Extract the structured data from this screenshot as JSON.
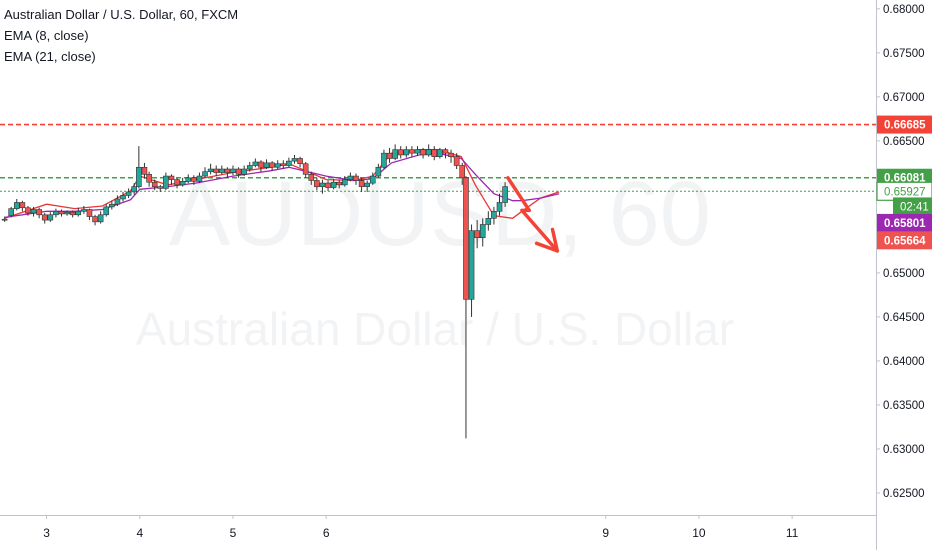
{
  "legend": {
    "title": "Australian Dollar / U.S. Dollar, 60, FXCM",
    "ema1": "EMA (8, close)",
    "ema2": "EMA (21, close)"
  },
  "watermark": {
    "symbol": "AUDUSD, 60",
    "name": "Australian Dollar / U.S. Dollar"
  },
  "colors": {
    "up": "#26a69a",
    "down": "#ef5350",
    "ema_fast": "#e53935",
    "ema_slow": "#9c27b0",
    "resistance": "#f44336",
    "support": "#43a047",
    "arrow": "#f44336",
    "axis_text": "#131722"
  },
  "chart_data": {
    "type": "candlestick",
    "symbol": "Australian Dollar / U.S. Dollar, 60, FXCM",
    "timeframe": "60",
    "y_axis": {
      "ticks": [
        "0.68000",
        "0.67500",
        "0.67000",
        "0.66500",
        "0.66000",
        "0.65500",
        "0.65000",
        "0.64500",
        "0.64000",
        "0.63500",
        "0.63000",
        "0.62500"
      ],
      "range": [
        0.6225,
        0.681
      ]
    },
    "x_axis": {
      "ticks": [
        "3",
        "4",
        "5",
        "6",
        "9",
        "10",
        "11"
      ],
      "range": [
        2.5,
        11.9
      ]
    },
    "price_labels": [
      {
        "value": "0.66685",
        "price": 0.66685,
        "color": "#f44336"
      },
      {
        "value": "0.66081",
        "price": 0.66081,
        "color": "#43a047"
      },
      {
        "value": "0.65927",
        "price": 0.65927,
        "color": "#43a047",
        "style": "outline"
      },
      {
        "value": "02:41",
        "price": 0.65755,
        "color": "#43a047",
        "style": "timer"
      },
      {
        "value": "0.65801",
        "price": 0.65568,
        "color": "#9c27b0"
      },
      {
        "value": "0.65664",
        "price": 0.6537,
        "color": "#ef5350"
      }
    ],
    "horizontal_lines": [
      {
        "price": 0.66685,
        "style": "dashed",
        "color": "#f44336"
      },
      {
        "price": 0.66081,
        "style": "dashed",
        "color": "#43a047"
      },
      {
        "price": 0.65927,
        "style": "dotted",
        "color": "#43a047"
      }
    ],
    "series": [
      {
        "name": "EMA (8, close)",
        "color": "#e53935",
        "x": [
          2.55,
          3.0,
          3.3,
          3.6,
          3.9,
          4.0,
          4.3,
          4.6,
          5.0,
          5.4,
          5.6,
          6.0,
          6.3,
          6.5,
          6.7,
          7.0,
          7.2,
          7.45,
          7.6,
          7.8,
          8.0,
          8.1,
          8.3,
          8.5
        ],
        "y": [
          0.6562,
          0.6578,
          0.6573,
          0.6576,
          0.6593,
          0.661,
          0.66,
          0.6606,
          0.6614,
          0.662,
          0.6624,
          0.6606,
          0.6605,
          0.661,
          0.6636,
          0.664,
          0.664,
          0.6632,
          0.66,
          0.6565,
          0.6562,
          0.657,
          0.6585,
          0.6592
        ]
      },
      {
        "name": "EMA (21, close)",
        "color": "#9c27b0",
        "x": [
          2.55,
          3.0,
          3.3,
          3.6,
          3.9,
          4.0,
          4.3,
          4.6,
          5.0,
          5.4,
          5.6,
          6.0,
          6.3,
          6.5,
          6.7,
          7.0,
          7.2,
          7.45,
          7.6,
          7.8,
          8.0,
          8.1,
          8.3,
          8.5
        ],
        "y": [
          0.6563,
          0.657,
          0.657,
          0.6572,
          0.6583,
          0.6595,
          0.6598,
          0.6602,
          0.661,
          0.6616,
          0.662,
          0.661,
          0.6605,
          0.6607,
          0.6625,
          0.6634,
          0.6636,
          0.663,
          0.6612,
          0.659,
          0.6582,
          0.6582,
          0.6585,
          0.659
        ]
      }
    ],
    "candles": [
      [
        2.55,
        0.656,
        0.6561,
        0.6558,
        0.6564
      ],
      [
        2.62,
        0.6565,
        0.6573,
        0.6563,
        0.6575
      ],
      [
        2.68,
        0.6573,
        0.658,
        0.6571,
        0.6584
      ],
      [
        2.74,
        0.658,
        0.6574,
        0.657,
        0.6582
      ],
      [
        2.8,
        0.6574,
        0.6568,
        0.6565,
        0.6576
      ],
      [
        2.86,
        0.6568,
        0.6572,
        0.6564,
        0.6575
      ],
      [
        2.92,
        0.6572,
        0.6566,
        0.6562,
        0.6574
      ],
      [
        2.98,
        0.6566,
        0.656,
        0.6556,
        0.6568
      ],
      [
        3.04,
        0.656,
        0.6566,
        0.6558,
        0.6569
      ],
      [
        3.1,
        0.6566,
        0.657,
        0.6563,
        0.6573
      ],
      [
        3.16,
        0.657,
        0.6567,
        0.6564,
        0.6572
      ],
      [
        3.22,
        0.6567,
        0.6569,
        0.6565,
        0.6571
      ],
      [
        3.28,
        0.6569,
        0.6566,
        0.6563,
        0.6571
      ],
      [
        3.34,
        0.6566,
        0.657,
        0.6564,
        0.6574
      ],
      [
        3.4,
        0.657,
        0.6572,
        0.6567,
        0.6576
      ],
      [
        3.46,
        0.6572,
        0.6564,
        0.656,
        0.6573
      ],
      [
        3.52,
        0.6564,
        0.6558,
        0.6554,
        0.6566
      ],
      [
        3.58,
        0.6558,
        0.6566,
        0.6556,
        0.657
      ],
      [
        3.64,
        0.6566,
        0.6575,
        0.6564,
        0.6578
      ],
      [
        3.7,
        0.6575,
        0.6578,
        0.6572,
        0.6582
      ],
      [
        3.76,
        0.6578,
        0.6584,
        0.6576,
        0.6588
      ],
      [
        3.82,
        0.6584,
        0.6588,
        0.6581,
        0.6592
      ],
      [
        3.88,
        0.6588,
        0.6592,
        0.6585,
        0.6596
      ],
      [
        3.94,
        0.6592,
        0.6598,
        0.6589,
        0.6602
      ],
      [
        3.99,
        0.6598,
        0.662,
        0.6596,
        0.6644
      ],
      [
        4.05,
        0.662,
        0.6612,
        0.6607,
        0.6625
      ],
      [
        4.1,
        0.6612,
        0.6603,
        0.6598,
        0.6615
      ],
      [
        4.16,
        0.6603,
        0.6598,
        0.6594,
        0.6606
      ],
      [
        4.22,
        0.6598,
        0.6596,
        0.6592,
        0.66
      ],
      [
        4.28,
        0.6596,
        0.661,
        0.6594,
        0.6614
      ],
      [
        4.34,
        0.661,
        0.6606,
        0.66,
        0.6612
      ],
      [
        4.4,
        0.6606,
        0.66,
        0.6596,
        0.6608
      ],
      [
        4.46,
        0.66,
        0.6604,
        0.6598,
        0.6608
      ],
      [
        4.52,
        0.6604,
        0.6608,
        0.6602,
        0.6612
      ],
      [
        4.58,
        0.6608,
        0.6604,
        0.66,
        0.6611
      ],
      [
        4.64,
        0.6604,
        0.661,
        0.6602,
        0.6614
      ],
      [
        4.7,
        0.661,
        0.6615,
        0.6608,
        0.662
      ],
      [
        4.76,
        0.6615,
        0.6618,
        0.6612,
        0.6624
      ],
      [
        4.82,
        0.6618,
        0.6614,
        0.661,
        0.6622
      ],
      [
        4.88,
        0.6614,
        0.6618,
        0.6612,
        0.6622
      ],
      [
        4.94,
        0.6618,
        0.6614,
        0.6608,
        0.662
      ],
      [
        5.0,
        0.6614,
        0.6618,
        0.6611,
        0.6622
      ],
      [
        5.06,
        0.6618,
        0.6612,
        0.6608,
        0.662
      ],
      [
        5.12,
        0.6612,
        0.6618,
        0.661,
        0.6622
      ],
      [
        5.18,
        0.6618,
        0.6622,
        0.6615,
        0.6626
      ],
      [
        5.24,
        0.6622,
        0.6626,
        0.662,
        0.663
      ],
      [
        5.3,
        0.6626,
        0.662,
        0.6615,
        0.6628
      ],
      [
        5.36,
        0.662,
        0.6625,
        0.6618,
        0.6629
      ],
      [
        5.42,
        0.6625,
        0.662,
        0.6616,
        0.6627
      ],
      [
        5.48,
        0.662,
        0.6624,
        0.6618,
        0.6628
      ],
      [
        5.54,
        0.6624,
        0.6622,
        0.6618,
        0.6628
      ],
      [
        5.6,
        0.6622,
        0.6627,
        0.662,
        0.6631
      ],
      [
        5.66,
        0.6627,
        0.663,
        0.6624,
        0.6634
      ],
      [
        5.72,
        0.663,
        0.6624,
        0.662,
        0.6632
      ],
      [
        5.78,
        0.6624,
        0.6612,
        0.6608,
        0.6626
      ],
      [
        5.84,
        0.6612,
        0.6605,
        0.66,
        0.6615
      ],
      [
        5.9,
        0.6605,
        0.6598,
        0.6594,
        0.6608
      ],
      [
        5.96,
        0.6598,
        0.6602,
        0.659,
        0.6606
      ],
      [
        6.02,
        0.6602,
        0.6597,
        0.6593,
        0.6605
      ],
      [
        6.08,
        0.6597,
        0.6603,
        0.6595,
        0.6607
      ],
      [
        6.14,
        0.6603,
        0.66,
        0.6596,
        0.6606
      ],
      [
        6.2,
        0.66,
        0.6606,
        0.6598,
        0.661
      ],
      [
        6.26,
        0.6606,
        0.661,
        0.6604,
        0.6614
      ],
      [
        6.32,
        0.661,
        0.6605,
        0.66,
        0.6613
      ],
      [
        6.38,
        0.6605,
        0.6598,
        0.6592,
        0.6608
      ],
      [
        6.44,
        0.6598,
        0.6602,
        0.6592,
        0.6605
      ],
      [
        6.5,
        0.6602,
        0.661,
        0.66,
        0.6614
      ],
      [
        6.56,
        0.661,
        0.662,
        0.6608,
        0.6624
      ],
      [
        6.62,
        0.662,
        0.6636,
        0.6618,
        0.664
      ],
      [
        6.68,
        0.6636,
        0.663,
        0.6625,
        0.6642
      ],
      [
        6.74,
        0.663,
        0.664,
        0.6628,
        0.6646
      ],
      [
        6.8,
        0.664,
        0.6634,
        0.663,
        0.6644
      ],
      [
        6.86,
        0.6634,
        0.664,
        0.6631,
        0.6644
      ],
      [
        6.92,
        0.664,
        0.6636,
        0.6632,
        0.6644
      ],
      [
        6.98,
        0.6636,
        0.664,
        0.6633,
        0.6644
      ],
      [
        7.04,
        0.664,
        0.6634,
        0.663,
        0.6642
      ],
      [
        7.1,
        0.6634,
        0.664,
        0.6632,
        0.6646
      ],
      [
        7.16,
        0.664,
        0.6632,
        0.6628,
        0.6644
      ],
      [
        7.22,
        0.6632,
        0.664,
        0.663,
        0.6642
      ],
      [
        7.28,
        0.664,
        0.6636,
        0.663,
        0.6642
      ],
      [
        7.34,
        0.6636,
        0.6632,
        0.6625,
        0.664
      ],
      [
        7.4,
        0.6632,
        0.6622,
        0.6618,
        0.6636
      ],
      [
        7.46,
        0.6622,
        0.6608,
        0.66,
        0.6625
      ],
      [
        7.5,
        0.6608,
        0.647,
        0.6312,
        0.661
      ],
      [
        7.56,
        0.647,
        0.6548,
        0.645,
        0.6555
      ],
      [
        7.62,
        0.6548,
        0.654,
        0.6528,
        0.656
      ],
      [
        7.68,
        0.654,
        0.6555,
        0.653,
        0.6562
      ],
      [
        7.74,
        0.6555,
        0.6562,
        0.6548,
        0.657
      ],
      [
        7.8,
        0.6562,
        0.657,
        0.6555,
        0.6575
      ],
      [
        7.86,
        0.657,
        0.658,
        0.6565,
        0.659
      ],
      [
        7.92,
        0.658,
        0.6598,
        0.6575,
        0.6603
      ]
    ],
    "annotations": [
      {
        "type": "arrow",
        "points": [
          [
            7.95,
            0.6608
          ],
          [
            8.18,
            0.6571
          ],
          [
            8.1,
            0.6571
          ],
          [
            8.48,
            0.6525
          ]
        ]
      }
    ]
  }
}
